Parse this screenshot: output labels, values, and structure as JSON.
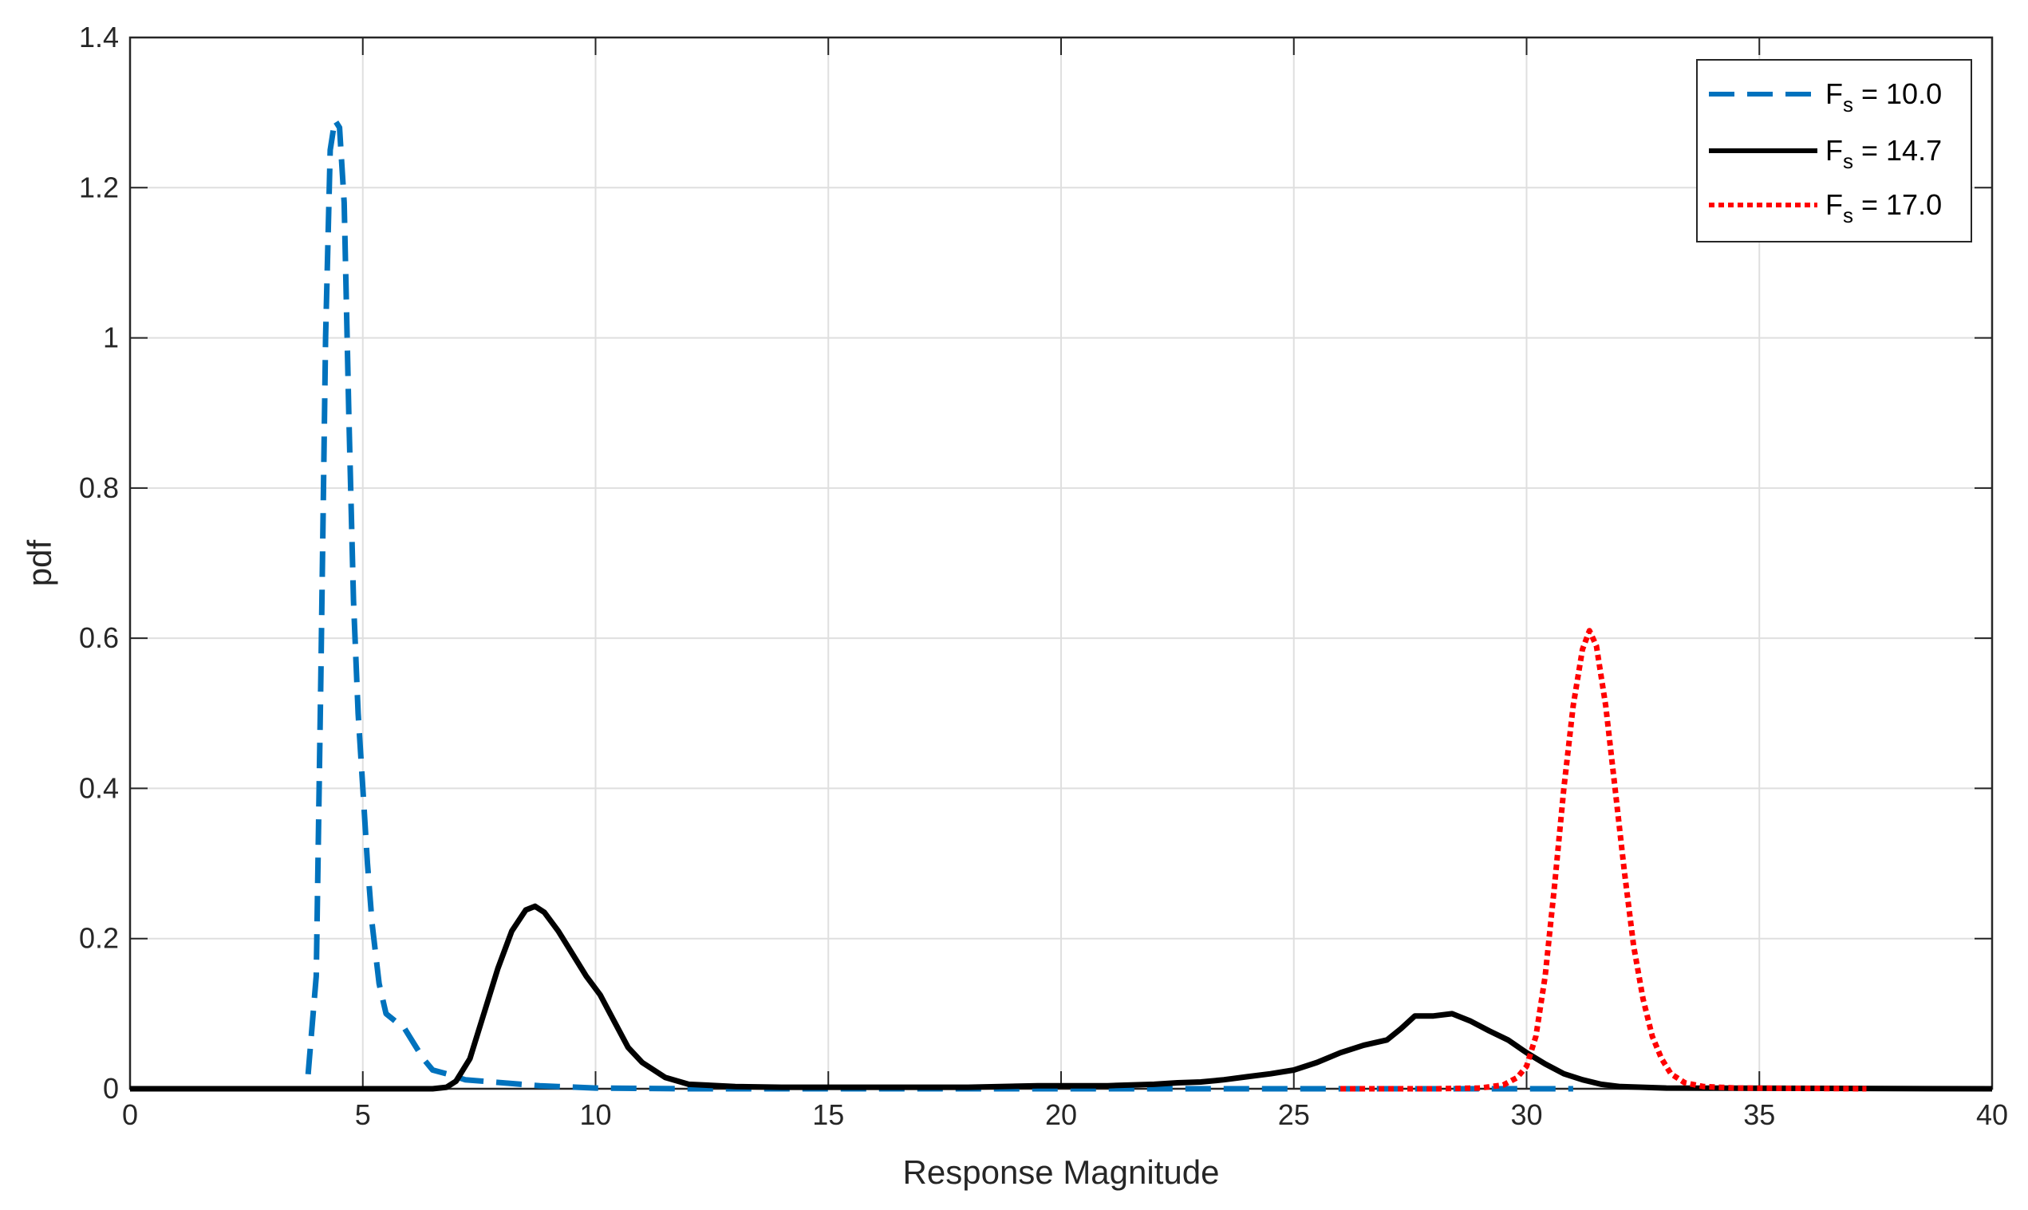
{
  "chart_data": {
    "type": "line",
    "title": "",
    "xlabel": "Response Magnitude",
    "ylabel": "pdf",
    "xlim": [
      0,
      40
    ],
    "ylim": [
      0,
      1.4
    ],
    "xticks": [
      0,
      5,
      10,
      15,
      20,
      25,
      30,
      35,
      40
    ],
    "xtick_labels": [
      "0",
      "5",
      "10",
      "15",
      "20",
      "25",
      "30",
      "35",
      "40"
    ],
    "yticks": [
      0,
      0.2,
      0.4,
      0.6,
      0.8,
      1.0,
      1.2,
      1.4
    ],
    "ytick_labels": [
      "0",
      "0.2",
      "0.4",
      "0.6",
      "0.8",
      "1",
      "1.2",
      "1.4"
    ],
    "grid": true,
    "legend_position": "top-right",
    "series": [
      {
        "name": "F_s = 10.0",
        "legend_main": "F",
        "legend_sub": "s",
        "legend_rest": " = 10.0",
        "color": "#0072BD",
        "style": "dashed",
        "x": [
          0,
          3.5,
          3.8,
          4.0,
          4.1,
          4.2,
          4.3,
          4.4,
          4.5,
          4.6,
          4.7,
          4.8,
          4.9,
          5.0,
          5.1,
          5.2,
          5.35,
          5.5,
          5.7,
          5.9,
          6.1,
          6.3,
          6.5,
          6.8,
          7.2,
          7.6,
          8.0,
          8.4,
          8.8,
          9.2,
          9.6,
          10.0,
          12.0,
          20.0,
          26.0,
          31.0
        ],
        "y": [
          0,
          0,
          0.0,
          0.15,
          0.55,
          1.0,
          1.25,
          1.29,
          1.28,
          1.18,
          0.9,
          0.65,
          0.5,
          0.4,
          0.3,
          0.22,
          0.14,
          0.1,
          0.09,
          0.08,
          0.06,
          0.04,
          0.025,
          0.02,
          0.012,
          0.01,
          0.008,
          0.006,
          0.004,
          0.003,
          0.002,
          0.001,
          0,
          0,
          0,
          0
        ]
      },
      {
        "name": "F_s = 14.7",
        "legend_main": "F",
        "legend_sub": "s",
        "legend_rest": " = 14.7",
        "color": "#000000",
        "style": "solid",
        "x": [
          0,
          6.5,
          6.8,
          7.0,
          7.3,
          7.6,
          7.9,
          8.2,
          8.5,
          8.7,
          8.9,
          9.2,
          9.5,
          9.8,
          10.1,
          10.4,
          10.7,
          11.0,
          11.5,
          12.0,
          13.0,
          14.0,
          16.0,
          18.0,
          19.5,
          21.0,
          22.0,
          22.5,
          23.0,
          23.5,
          24.0,
          24.5,
          25.0,
          25.5,
          26.0,
          26.5,
          27.0,
          27.3,
          27.6,
          28.0,
          28.4,
          28.8,
          29.2,
          29.6,
          30.0,
          30.4,
          30.8,
          31.2,
          31.6,
          32.0,
          33.0,
          40.0
        ],
        "y": [
          0,
          0,
          0.002,
          0.01,
          0.04,
          0.1,
          0.16,
          0.21,
          0.238,
          0.243,
          0.235,
          0.21,
          0.18,
          0.15,
          0.125,
          0.09,
          0.055,
          0.035,
          0.015,
          0.006,
          0.003,
          0.002,
          0.002,
          0.002,
          0.004,
          0.004,
          0.006,
          0.008,
          0.009,
          0.012,
          0.016,
          0.02,
          0.025,
          0.035,
          0.048,
          0.058,
          0.065,
          0.08,
          0.097,
          0.097,
          0.1,
          0.09,
          0.077,
          0.065,
          0.048,
          0.033,
          0.02,
          0.012,
          0.006,
          0.003,
          0.001,
          0
        ]
      },
      {
        "name": "F_s = 17.0",
        "legend_main": "F",
        "legend_sub": "s",
        "legend_rest": " = 17.0",
        "color": "#FF0000",
        "style": "dotted",
        "x": [
          26.0,
          28.0,
          29.0,
          29.5,
          29.8,
          30.0,
          30.2,
          30.4,
          30.6,
          30.8,
          31.0,
          31.2,
          31.35,
          31.5,
          31.7,
          31.9,
          32.1,
          32.3,
          32.5,
          32.7,
          32.9,
          33.1,
          33.4,
          33.8,
          34.5,
          37.3
        ],
        "y": [
          0,
          0,
          0.001,
          0.005,
          0.015,
          0.03,
          0.07,
          0.15,
          0.27,
          0.4,
          0.51,
          0.585,
          0.61,
          0.59,
          0.51,
          0.4,
          0.29,
          0.19,
          0.12,
          0.07,
          0.04,
          0.02,
          0.008,
          0.003,
          0.001,
          0
        ]
      }
    ]
  }
}
